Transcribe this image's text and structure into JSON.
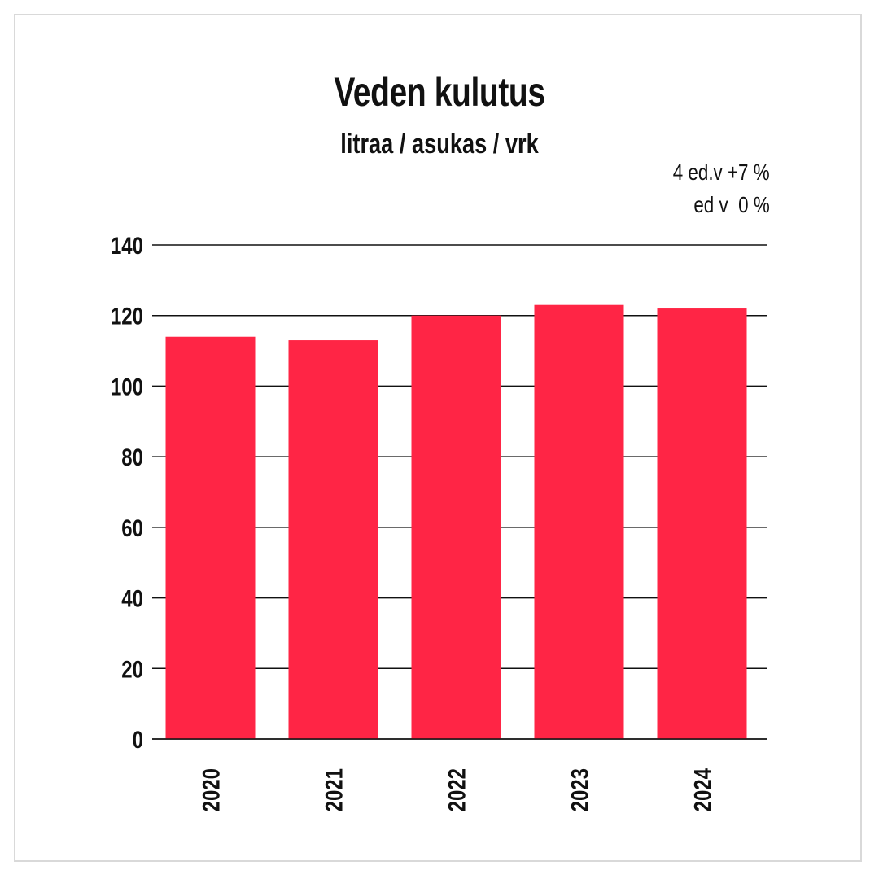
{
  "chart_data": {
    "type": "bar",
    "title": "Veden kulutus",
    "subtitle": "litraa / asukas / vrk",
    "annotations": [
      "4 ed.v +7 %",
      "ed v  0 %"
    ],
    "categories": [
      "2020",
      "2021",
      "2022",
      "2023",
      "2024"
    ],
    "values": [
      114,
      113,
      120,
      123,
      122
    ],
    "ylim": [
      0,
      140
    ],
    "yticks": [
      "0",
      "20",
      "40",
      "60",
      "80",
      "100",
      "120",
      "140"
    ],
    "grid": true,
    "bar_color": "#ff2545"
  }
}
